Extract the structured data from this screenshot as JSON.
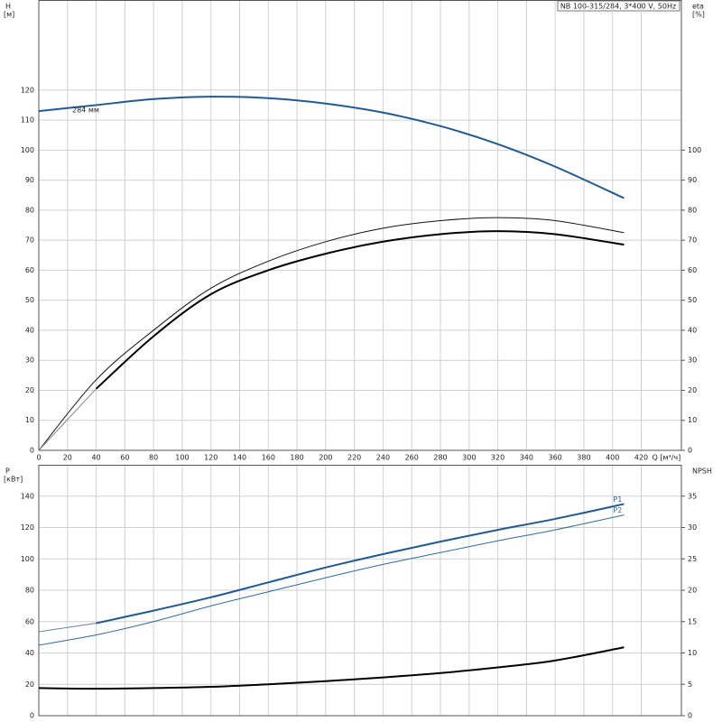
{
  "chart_data": [
    {
      "type": "line",
      "title": "NB 100-315/284, 3*400 V, 50Hz",
      "ylabel": "H",
      "ylabel_unit": "[м]",
      "y2label": "eta",
      "y2label_unit": "[%]",
      "xlabel": "Q [м³/ч]",
      "annotations": [
        "284 мм"
      ],
      "x": [
        0,
        40,
        80,
        120,
        160,
        200,
        240,
        280,
        320,
        360,
        408
      ],
      "xlim": [
        0,
        448
      ],
      "xticks": [
        0,
        20,
        40,
        60,
        80,
        100,
        120,
        140,
        160,
        180,
        200,
        220,
        240,
        260,
        280,
        300,
        320,
        340,
        360,
        380,
        400,
        420
      ],
      "ylim": [
        0,
        150
      ],
      "yticks": [
        0,
        10,
        20,
        30,
        40,
        50,
        60,
        70,
        80,
        90,
        100,
        110,
        120
      ],
      "y2lim": [
        0,
        150
      ],
      "y2ticks": [
        0,
        10,
        20,
        30,
        40,
        50,
        60,
        70,
        80,
        90,
        100
      ],
      "grid": true,
      "series": [
        {
          "color": "#1f5a96",
          "linewidth": 2,
          "values": [
            113,
            115,
            117,
            117.8,
            117.3,
            115.5,
            112.5,
            108,
            102,
            94.5,
            84
          ]
        },
        {
          "color": "#111111",
          "linewidth": 1,
          "axis": "y2",
          "values": [
            0,
            23.5,
            40,
            54,
            63,
            69.5,
            74,
            76.5,
            77.5,
            76.5,
            72.5
          ]
        },
        {
          "color": "#888888",
          "linewidth": 1,
          "axis": "y2",
          "values": [
            0,
            20.5,
            null,
            null,
            null,
            null,
            null,
            null,
            null,
            null,
            null
          ]
        },
        {
          "color": "#000000",
          "linewidth": 2,
          "axis": "y2",
          "values": [
            null,
            20.5,
            38,
            52,
            60,
            65.5,
            69.5,
            72,
            73,
            72,
            68.5
          ]
        }
      ]
    },
    {
      "type": "line",
      "ylabel": "P",
      "ylabel_unit": "[кВт]",
      "y2label": "NPSH",
      "x": [
        0,
        40,
        80,
        120,
        160,
        200,
        240,
        280,
        320,
        360,
        408
      ],
      "xlim": [
        0,
        448
      ],
      "ylim": [
        0,
        160
      ],
      "yticks": [
        0,
        20,
        40,
        60,
        80,
        100,
        120,
        140
      ],
      "y2lim": [
        0,
        40
      ],
      "y2ticks": [
        0,
        5,
        10,
        15,
        20,
        25,
        30,
        35
      ],
      "grid": true,
      "series": [
        {
          "color": "#5b87b5",
          "linewidth": 1,
          "values": [
            53.5,
            59,
            null,
            null,
            null,
            null,
            null,
            null,
            null,
            null,
            null
          ]
        },
        {
          "name": "P1",
          "color": "#1f5a96",
          "linewidth": 2,
          "values": [
            null,
            59,
            67,
            75.5,
            85,
            94.5,
            103,
            111,
            118.5,
            125.5,
            135
          ]
        },
        {
          "name": "P2",
          "color": "#2d6aa8",
          "linewidth": 1,
          "values": [
            45,
            51.5,
            60,
            70,
            79,
            88,
            96.5,
            104,
            111.5,
            118.5,
            128
          ]
        },
        {
          "color": "#000000",
          "linewidth": 2,
          "axis": "y2",
          "values": [
            4.4,
            4.3,
            4.4,
            4.6,
            5.0,
            5.5,
            6.1,
            6.8,
            7.7,
            8.8,
            10.9
          ]
        }
      ]
    }
  ]
}
